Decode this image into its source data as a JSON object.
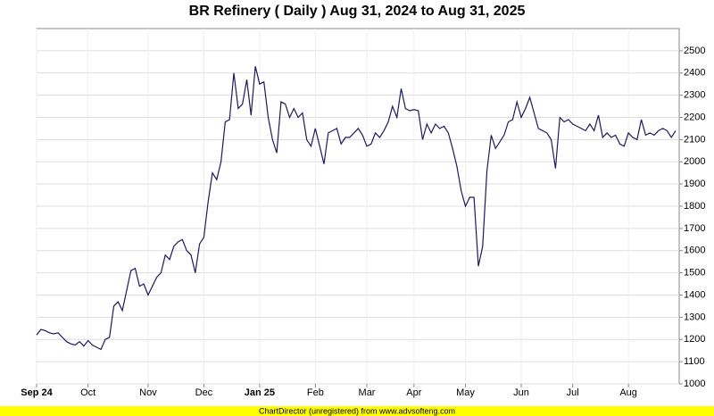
{
  "chart_data": {
    "type": "line",
    "title": "BR Refinery ( Daily ) Aug 31, 2024 to Aug 31, 2025",
    "footer": "ChartDirector (unregistered) from www.advsofteng.com",
    "categories": [
      "Sep 24",
      null,
      null,
      null,
      null,
      null,
      null,
      null,
      null,
      null,
      null,
      null,
      "Oct",
      null,
      null,
      null,
      null,
      null,
      null,
      null,
      null,
      null,
      null,
      null,
      null,
      null,
      "Nov",
      null,
      null,
      null,
      null,
      null,
      null,
      null,
      null,
      null,
      null,
      null,
      null,
      "Dec",
      null,
      null,
      null,
      null,
      null,
      null,
      null,
      null,
      null,
      null,
      null,
      null,
      "Jan 25",
      null,
      null,
      null,
      null,
      null,
      null,
      null,
      null,
      null,
      null,
      null,
      null,
      "Feb",
      null,
      null,
      null,
      null,
      null,
      null,
      null,
      null,
      null,
      null,
      null,
      "Mar",
      null,
      null,
      null,
      null,
      null,
      null,
      null,
      null,
      null,
      null,
      "Apr",
      null,
      null,
      null,
      null,
      null,
      null,
      null,
      null,
      null,
      null,
      null,
      "May",
      null,
      null,
      null,
      null,
      null,
      null,
      null,
      null,
      null,
      null,
      null,
      null,
      "Jun",
      null,
      null,
      null,
      null,
      null,
      null,
      null,
      null,
      null,
      null,
      null,
      "Jul",
      null,
      null,
      null,
      null,
      null,
      null,
      null,
      null,
      null,
      null,
      null,
      null,
      "Aug",
      null,
      null,
      null,
      null,
      null,
      null,
      null,
      null,
      null,
      null,
      null
    ],
    "series": [
      {
        "name": "BR Refinery",
        "color": "#1a1a5e",
        "values": [
          1220,
          1245,
          1240,
          1230,
          1225,
          1230,
          1210,
          1190,
          1180,
          1175,
          1190,
          1170,
          1195,
          1175,
          1165,
          1155,
          1200,
          1210,
          1350,
          1370,
          1330,
          1420,
          1510,
          1520,
          1440,
          1450,
          1400,
          1440,
          1480,
          1500,
          1580,
          1560,
          1620,
          1640,
          1650,
          1600,
          1580,
          1500,
          1630,
          1660,
          1820,
          1950,
          1920,
          2000,
          2180,
          2190,
          2400,
          2240,
          2260,
          2370,
          2210,
          2430,
          2350,
          2360,
          2200,
          2100,
          2040,
          2270,
          2260,
          2200,
          2240,
          2200,
          2220,
          2100,
          2070,
          2150,
          2070,
          1990,
          2130,
          2140,
          2150,
          2080,
          2110,
          2110,
          2130,
          2150,
          2120,
          2070,
          2080,
          2130,
          2110,
          2140,
          2180,
          2250,
          2200,
          2330,
          2240,
          2230,
          2235,
          2230,
          2100,
          2170,
          2130,
          2170,
          2150,
          2160,
          2130,
          2060,
          1980,
          1870,
          1800,
          1840,
          1840,
          1530,
          1620,
          1960,
          2120,
          2060,
          2090,
          2120,
          2180,
          2190,
          2270,
          2200,
          2240,
          2290,
          2220,
          2150,
          2140,
          2130,
          2100,
          1970,
          2200,
          2180,
          2190,
          2170,
          2160,
          2150,
          2140,
          2170,
          2140,
          2210,
          2110,
          2130,
          2110,
          2120,
          2080,
          2070,
          2130,
          2110,
          2100,
          2190,
          2120,
          2130,
          2120,
          2140,
          2150,
          2140,
          2110,
          2140
        ]
      }
    ],
    "ylim": [
      1000,
      2600
    ],
    "yticks": [
      1000,
      1100,
      1200,
      1300,
      1400,
      1500,
      1600,
      1700,
      1800,
      1900,
      2000,
      2100,
      2200,
      2300,
      2400,
      2500
    ],
    "grid": true
  }
}
